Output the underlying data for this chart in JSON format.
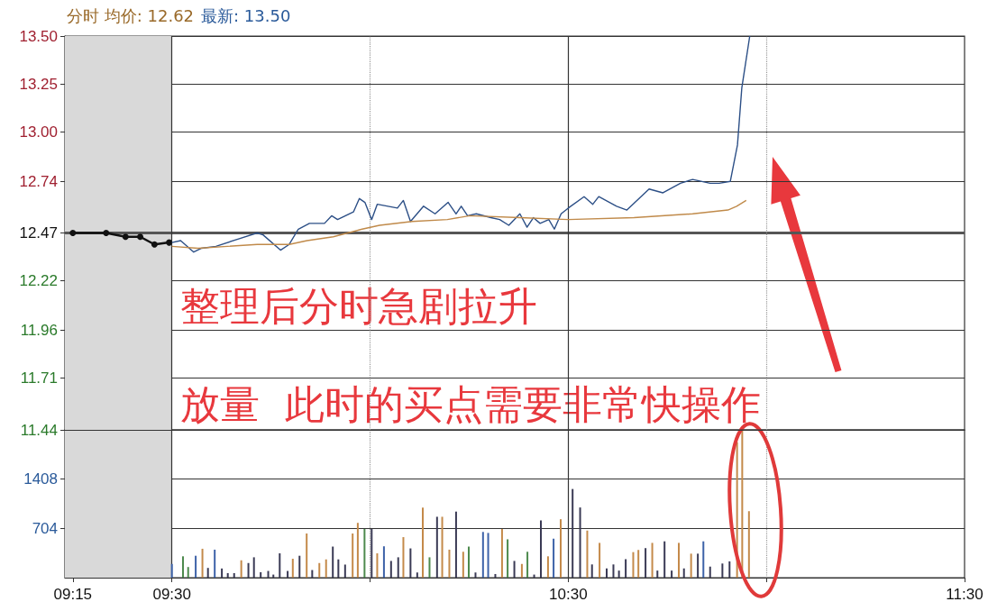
{
  "chart_data": [
    {
      "type": "line",
      "title": "分时 均价: 12.62",
      "subtitle": "最新: 13.50",
      "annotations": [
        "整理后分时急剧拉升",
        "放量  此时的买点需要非常快操作"
      ],
      "xlim": [
        9.23,
        11.5
      ],
      "ylim": [
        11.44,
        13.5
      ],
      "yticks": [
        11.44,
        11.71,
        11.96,
        12.22,
        12.47,
        12.74,
        {
          "value": 13.0,
          "label": "13.00"
        },
        13.25,
        {
          "value": 13.5,
          "label": "13.50"
        }
      ],
      "grid": "y",
      "tick_labels": "y",
      "ref_lines": [
        {
          "axis": "y",
          "value": 12.47,
          "color": "#555555"
        },
        {
          "axis": "x",
          "value": 9.5,
          "color": "#333333",
          "line_style": "solid"
        },
        {
          "axis": "x",
          "value": 10,
          "color": "#999999",
          "line_style": "dotted"
        },
        {
          "axis": "x",
          "value": 10.5,
          "color": "#333333",
          "line_style": "solid"
        },
        {
          "axis": "x",
          "value": 11,
          "color": "#999999",
          "line_style": "dotted"
        }
      ],
      "bands": [
        {
          "axis": "x",
          "from": 9.23,
          "to": 9.5,
          "color": "#d9d9d9"
        }
      ],
      "series": [
        {
          "color": "#111111",
          "marker": "circle",
          "x": [
            9.25,
            9.334,
            9.383,
            9.42,
            9.456,
            9.493
          ],
          "values": [
            12.47,
            12.47,
            12.45,
            12.45,
            12.41,
            12.42
          ]
        },
        {
          "color": "#2c4f86",
          "marker": "none",
          "x": [
            9.5,
            9.522,
            9.555,
            9.575,
            9.611,
            9.67,
            9.715,
            9.73,
            9.774,
            9.796,
            9.819,
            9.847,
            9.885,
            9.903,
            9.918,
            9.958,
            9.973,
            9.987,
            10.004,
            10.018,
            10.069,
            10.084,
            10.102,
            10.135,
            10.164,
            10.197,
            10.217,
            10.23,
            10.246,
            10.268,
            10.305,
            10.327,
            10.35,
            10.378,
            10.396,
            10.412,
            10.429,
            10.451,
            10.465,
            10.482,
            10.5,
            10.54,
            10.562,
            10.577,
            10.622,
            10.648,
            10.704,
            10.739,
            10.783,
            10.814,
            10.858,
            10.881,
            10.909,
            10.927,
            10.938,
            10.958
          ],
          "values": [
            12.42,
            12.43,
            12.37,
            12.39,
            12.4,
            12.44,
            12.47,
            12.46,
            12.38,
            12.41,
            12.49,
            12.52,
            12.52,
            12.56,
            12.54,
            12.58,
            12.65,
            12.63,
            12.54,
            12.62,
            12.6,
            12.64,
            12.53,
            12.61,
            12.57,
            12.63,
            12.57,
            12.61,
            12.56,
            12.57,
            12.55,
            12.54,
            12.51,
            12.57,
            12.5,
            12.55,
            12.52,
            12.54,
            12.49,
            12.57,
            12.6,
            12.66,
            12.62,
            12.66,
            12.61,
            12.59,
            12.7,
            12.68,
            12.73,
            12.75,
            12.73,
            12.73,
            12.74,
            12.93,
            13.23,
            13.5
          ]
        },
        {
          "color": "#c08a4a",
          "marker": "none",
          "x": [
            9.5,
            9.566,
            9.715,
            9.796,
            9.841,
            9.907,
            9.98,
            10.024,
            10.106,
            10.195,
            10.252,
            10.378,
            10.5,
            10.666,
            10.814,
            10.903,
            10.925,
            10.949
          ],
          "values": [
            12.4,
            12.39,
            12.41,
            12.41,
            12.43,
            12.45,
            12.49,
            12.51,
            12.53,
            12.54,
            12.56,
            12.55,
            12.54,
            12.55,
            12.57,
            12.59,
            12.61,
            12.64
          ]
        }
      ]
    },
    {
      "type": "bar",
      "xlim": [
        9.23,
        11.5
      ],
      "xticks": [
        {
          "value": 9.25,
          "label": "09:15"
        },
        {
          "value": 9.5,
          "label": "09:30"
        },
        {
          "value": 10,
          "label": null
        },
        {
          "value": 10.5,
          "label": "10:30"
        },
        {
          "value": 11,
          "label": null
        },
        {
          "value": 11.5,
          "label": "11:30"
        }
      ],
      "ylim": [
        0,
        2112
      ],
      "yticks": [
        704,
        1408
      ],
      "grid": "y",
      "ref_lines": [
        {
          "axis": "x",
          "value": 9.5,
          "color": "#333333",
          "line_style": "solid"
        },
        {
          "axis": "x",
          "value": 10,
          "color": "#999999",
          "line_style": "dotted"
        },
        {
          "axis": "x",
          "value": 10.5,
          "color": "#333333",
          "line_style": "solid"
        },
        {
          "axis": "x",
          "value": 11,
          "color": "#999999",
          "line_style": "dotted"
        }
      ],
      "bands": [
        {
          "axis": "x",
          "from": 9.23,
          "to": 9.5,
          "color": "#d9d9d9"
        }
      ],
      "x": [
        9.5,
        9.528,
        9.541,
        9.56,
        9.577,
        9.591,
        9.608,
        9.626,
        9.641,
        9.657,
        9.675,
        9.693,
        9.707,
        9.724,
        9.743,
        9.756,
        9.772,
        9.792,
        9.805,
        9.822,
        9.84,
        9.854,
        9.872,
        9.889,
        9.906,
        9.92,
        9.937,
        9.956,
        9.969,
        9.986,
        10.004,
        10.018,
        10.035,
        10.053,
        10.071,
        10.084,
        10.102,
        10.119,
        10.133,
        10.15,
        10.169,
        10.182,
        10.2,
        10.217,
        10.235,
        10.249,
        10.266,
        10.285,
        10.298,
        10.316,
        10.333,
        10.347,
        10.364,
        10.383,
        10.397,
        10.414,
        10.431,
        10.449,
        10.463,
        10.481,
        10.511,
        10.53,
        10.548,
        10.56,
        10.579,
        10.597,
        10.614,
        10.628,
        10.645,
        10.664,
        10.677,
        10.695,
        10.712,
        10.725,
        10.743,
        10.761,
        10.779,
        10.792,
        10.81,
        10.827,
        10.841,
        10.858,
        10.889,
        10.907,
        10.926,
        10.939,
        10.956
      ],
      "values": [
        196,
        305,
        152,
        313,
        413,
        139,
        400,
        131,
        65,
        65,
        248,
        209,
        291,
        78,
        96,
        44,
        348,
        96,
        270,
        313,
        631,
        109,
        209,
        261,
        444,
        261,
        187,
        631,
        783,
        696,
        696,
        348,
        448,
        239,
        291,
        579,
        418,
        74,
        1001,
        291,
        870,
        870,
        400,
        944,
        370,
        444,
        74,
        653,
        639,
        52,
        696,
        548,
        239,
        196,
        370,
        44,
        818,
        305,
        557,
        835,
        1267,
        1003,
        673,
        189,
        497,
        132,
        189,
        101,
        264,
        365,
        396,
        422,
        497,
        101,
        519,
        101,
        497,
        132,
        343,
        343,
        519,
        158,
        202,
        233,
        1936,
        2112,
        950
      ],
      "colors": [
        "#3d62a8",
        "#4d8a4d",
        "#4d8a4d",
        "#3d62a8",
        "#c48a4a",
        "#3a3a55",
        "#3d62a8",
        "#3a3a55",
        "#3a3a55",
        "#3a3a55",
        "#c48a4a",
        "#3a3a55",
        "#3a3a55",
        "#3a3a55",
        "#3a3a55",
        "#3a3a55",
        "#3a3a55",
        "#3a3a55",
        "#c48a4a",
        "#3a3a55",
        "#c48a4a",
        "#3a3a55",
        "#c48a4a",
        "#c48a4a",
        "#3a3a55",
        "#3a3a55",
        "#3a3a55",
        "#c48a4a",
        "#c48a4a",
        "#4d8a4d",
        "#3a3a55",
        "#c48a4a",
        "#3d62a8",
        "#3a3a55",
        "#3a3a55",
        "#c48a4a",
        "#3a3a55",
        "#3a3a55",
        "#c48a4a",
        "#4d8a4d",
        "#3a3a55",
        "#c48a4a",
        "#c48a4a",
        "#3a3a55",
        "#c48a4a",
        "#4d8a4d",
        "#3a3a55",
        "#3d62a8",
        "#3d62a8",
        "#3a3a55",
        "#c48a4a",
        "#4d8a4d",
        "#3a3a55",
        "#c48a4a",
        "#4d8a4d",
        "#3a3a55",
        "#3a3a55",
        "#c48a4a",
        "#3d62a8",
        "#c48a4a",
        "#3a3a55",
        "#3a3a55",
        "#c48a4a",
        "#3a3a55",
        "#c48a4a",
        "#3a3a55",
        "#3a3a55",
        "#3a3a55",
        "#3a3a55",
        "#c48a4a",
        "#c48a4a",
        "#3a3a55",
        "#c48a4a",
        "#3a3a55",
        "#3a3a55",
        "#3a3a55",
        "#c48a4a",
        "#3a3a55",
        "#c48a4a",
        "#3a3a55",
        "#3d62a8",
        "#3a3a55",
        "#3a3a55",
        "#3a3a55",
        "#c48a4a",
        "#c48a4a",
        "#c48a4a"
      ]
    }
  ]
}
